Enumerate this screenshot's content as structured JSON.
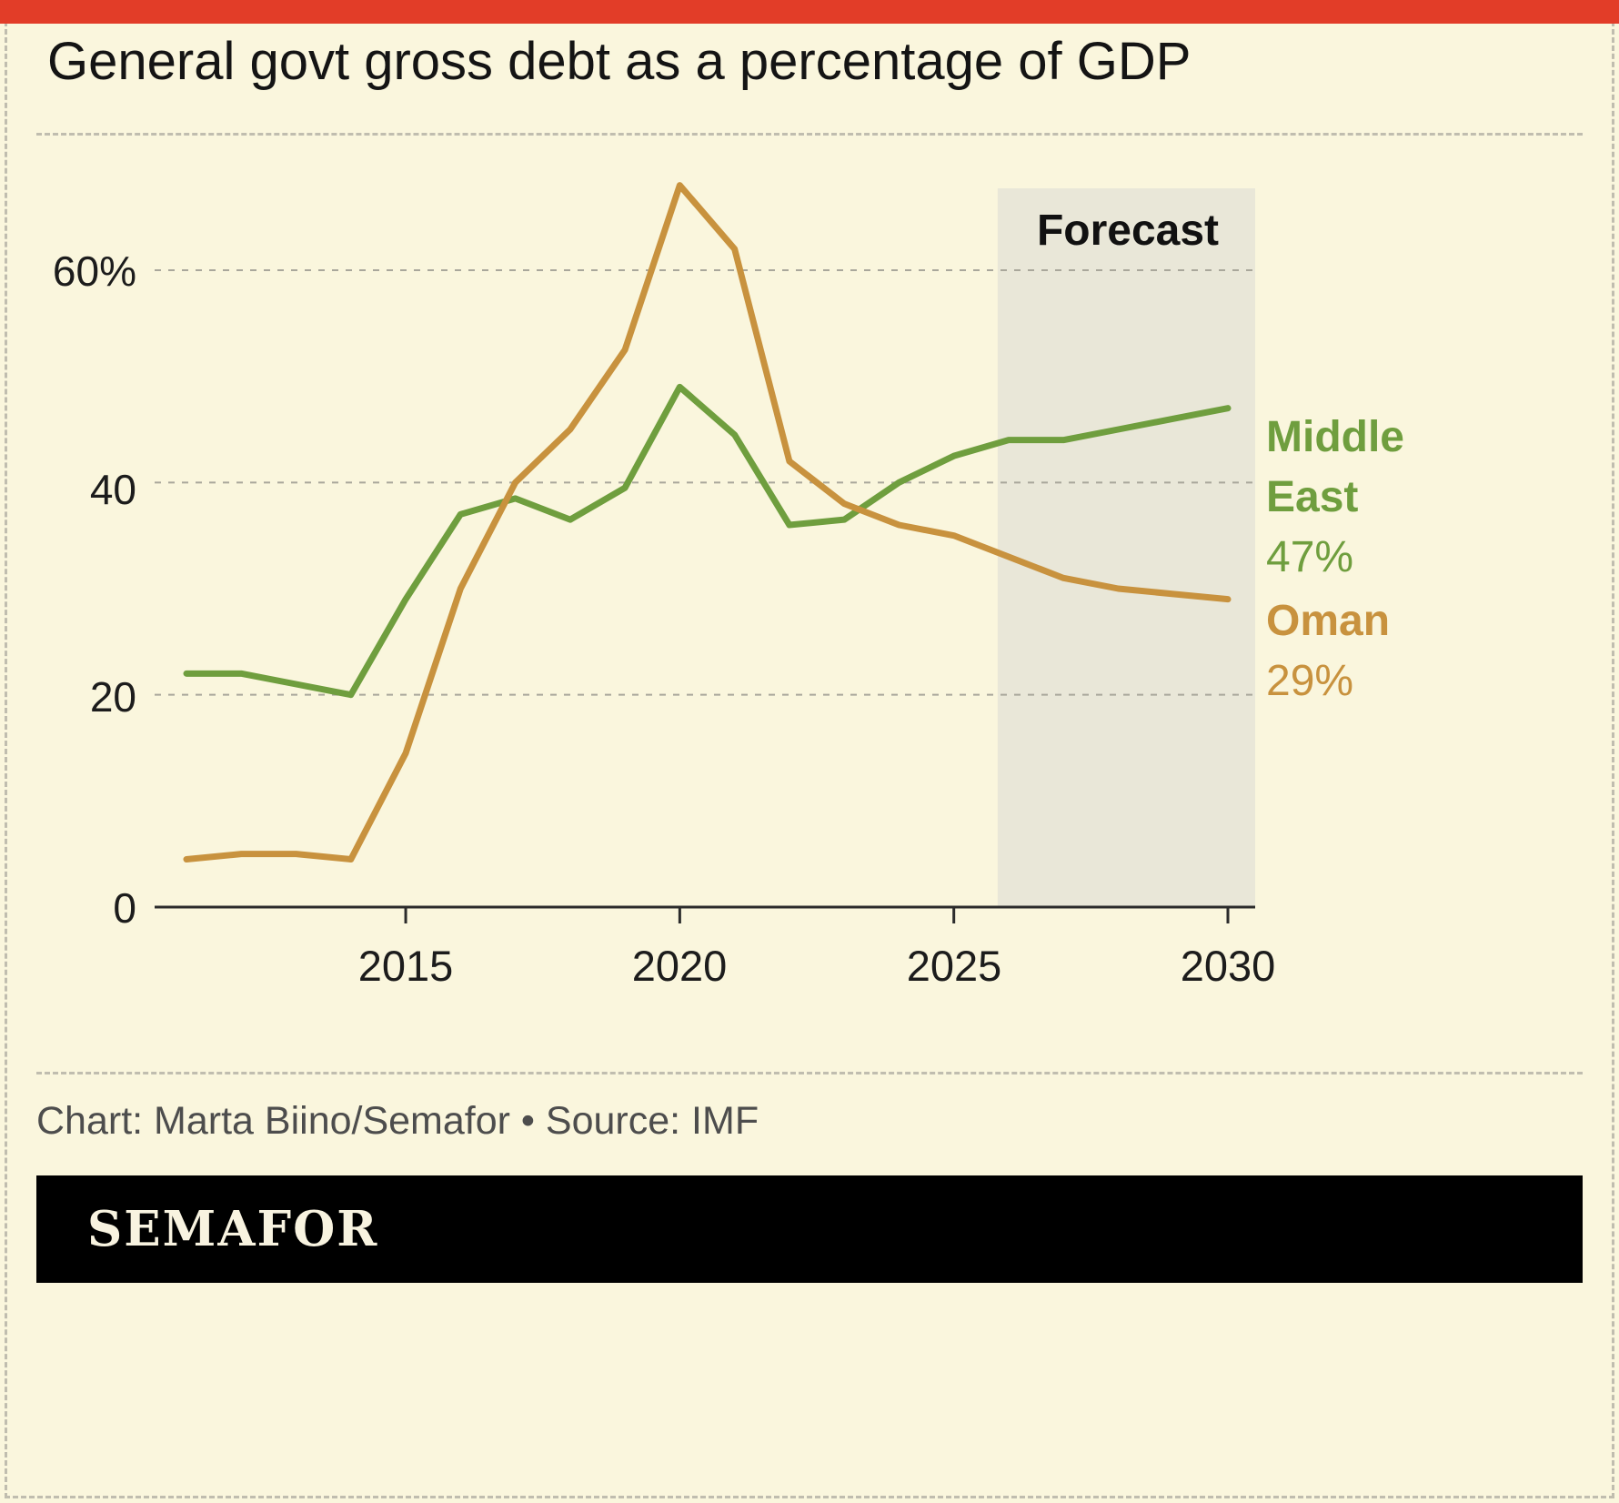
{
  "page": {
    "title": "General govt gross debt as a percentage of GDP",
    "credit": "Chart: Marta Biino/Semafor • Source: IMF",
    "brand": "SEMAFOR"
  },
  "colors": {
    "background": "#faf6dd",
    "accent_bar": "#e23d28",
    "forecast_bg": "#e9e7d8",
    "grid": "#a9a79b",
    "axis": "#2b2b2b",
    "credit_text": "#4d4d4d",
    "banner_bg": "#000000",
    "banner_text": "#f8f3e0"
  },
  "chart_data": {
    "type": "line",
    "title": "General govt gross debt as a percentage of GDP",
    "xlabel": "",
    "ylabel": "",
    "grid": "horizontal-dashed",
    "legend_position": "right",
    "xlim": [
      2011,
      2030
    ],
    "ylim": [
      0,
      70
    ],
    "x": [
      2011,
      2012,
      2013,
      2014,
      2015,
      2016,
      2017,
      2018,
      2019,
      2020,
      2021,
      2022,
      2023,
      2024,
      2025,
      2026,
      2027,
      2028,
      2029,
      2030
    ],
    "xticks": [
      2015,
      2020,
      2025,
      2030
    ],
    "yticks": [
      {
        "value": 0,
        "label": "0"
      },
      {
        "value": 20,
        "label": "20"
      },
      {
        "value": 40,
        "label": "40"
      },
      {
        "value": 60,
        "label": "60%"
      }
    ],
    "forecast_start": 2026,
    "forecast_label": "Forecast",
    "series": [
      {
        "name": "Middle East",
        "end_label": "47%",
        "color": "#6f9e3e",
        "values": [
          22,
          22,
          21,
          20,
          29,
          37,
          38.5,
          36.5,
          39.5,
          49,
          44.5,
          36,
          36.5,
          40,
          42.5,
          44,
          44,
          45,
          46,
          47
        ]
      },
      {
        "name": "Oman",
        "end_label": "29%",
        "color": "#c8923e",
        "values": [
          4.5,
          5,
          5,
          4.5,
          14.5,
          30,
          40,
          45,
          52.5,
          68,
          62,
          42,
          38,
          36,
          35,
          33,
          31,
          30,
          29.5,
          29
        ]
      }
    ]
  }
}
